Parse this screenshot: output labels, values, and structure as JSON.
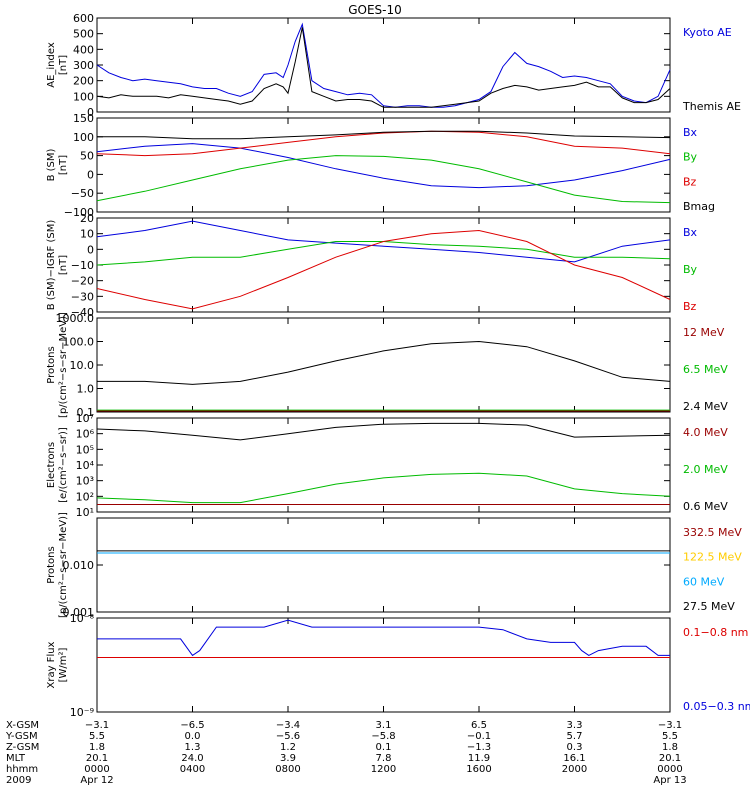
{
  "figure": {
    "title": "GOES-10"
  },
  "chart_data": [
    {
      "type": "line",
      "ylabel_lines": [
        "AE_index",
        "[nT]"
      ],
      "ylim": [
        0,
        600
      ],
      "y_ticks": [
        0,
        100,
        200,
        300,
        400,
        500,
        600
      ],
      "y_tick_labels": [
        "0",
        "100",
        "200",
        "300",
        "400",
        "500",
        "600"
      ],
      "legend": [
        {
          "label": "Kyoto AE",
          "color": "#0000dd"
        },
        {
          "label": "Themis AE",
          "color": "#000000"
        }
      ],
      "series": [
        {
          "name": "Kyoto AE",
          "color": "#0000dd",
          "x": [
            0,
            0.5,
            1,
            1.5,
            2,
            2.5,
            3,
            3.5,
            4,
            4.5,
            5,
            5.5,
            6,
            6.5,
            7,
            7.5,
            7.8,
            8,
            8.3,
            8.6,
            9,
            9.5,
            10,
            10.5,
            11,
            11.5,
            12,
            12.5,
            13,
            13.5,
            14,
            14.5,
            15,
            15.5,
            16,
            16.5,
            17,
            17.5,
            18,
            18.5,
            19,
            19.5,
            20,
            20.5,
            21,
            21.5,
            22,
            22.5,
            23,
            23.5,
            24
          ],
          "y": [
            300,
            250,
            220,
            200,
            210,
            200,
            190,
            180,
            160,
            150,
            150,
            120,
            100,
            130,
            240,
            250,
            220,
            300,
            450,
            560,
            200,
            150,
            130,
            110,
            120,
            110,
            40,
            30,
            40,
            40,
            30,
            30,
            40,
            60,
            80,
            130,
            290,
            380,
            310,
            290,
            260,
            220,
            230,
            220,
            200,
            180,
            100,
            70,
            60,
            100,
            270
          ]
        },
        {
          "name": "Themis AE",
          "color": "#000000",
          "x": [
            0,
            0.5,
            1,
            1.5,
            2,
            2.5,
            3,
            3.5,
            4,
            4.5,
            5,
            5.5,
            6,
            6.5,
            7,
            7.5,
            7.8,
            8,
            8.3,
            8.6,
            9,
            9.5,
            10,
            10.5,
            11,
            11.5,
            12,
            12.5,
            13,
            13.5,
            14,
            14.5,
            15,
            15.5,
            16,
            16.5,
            17,
            17.5,
            18,
            18.5,
            19,
            19.5,
            20,
            20.5,
            21,
            21.5,
            22,
            22.5,
            23,
            23.5,
            24
          ],
          "y": [
            100,
            90,
            110,
            100,
            100,
            100,
            90,
            110,
            100,
            90,
            80,
            70,
            50,
            70,
            150,
            180,
            160,
            120,
            320,
            540,
            130,
            100,
            70,
            80,
            80,
            70,
            30,
            30,
            30,
            30,
            30,
            40,
            50,
            60,
            70,
            120,
            150,
            170,
            160,
            140,
            150,
            160,
            170,
            190,
            160,
            160,
            90,
            60,
            60,
            80,
            150
          ]
        }
      ]
    },
    {
      "type": "line",
      "ylabel_lines": [
        "B (SM)",
        "[nT]"
      ],
      "ylim": [
        -100,
        150
      ],
      "y_ticks": [
        -100,
        -50,
        0,
        50,
        100,
        150
      ],
      "y_tick_labels": [
        "−100",
        "−50",
        "0",
        "50",
        "100",
        "150"
      ],
      "legend": [
        {
          "label": "Bx",
          "color": "#0000dd"
        },
        {
          "label": "By",
          "color": "#00bb00"
        },
        {
          "label": "Bz",
          "color": "#dd0000"
        },
        {
          "label": "Bmag",
          "color": "#000000"
        }
      ],
      "series": [
        {
          "name": "Bx",
          "color": "#0000dd",
          "x": [
            0,
            2,
            4,
            6,
            8,
            10,
            12,
            14,
            16,
            18,
            20,
            22,
            24
          ],
          "y": [
            60,
            75,
            82,
            70,
            45,
            15,
            -10,
            -30,
            -35,
            -30,
            -15,
            10,
            40
          ]
        },
        {
          "name": "By",
          "color": "#00bb00",
          "x": [
            0,
            2,
            4,
            6,
            8,
            10,
            12,
            14,
            16,
            18,
            20,
            22,
            24
          ],
          "y": [
            -70,
            -45,
            -15,
            15,
            38,
            50,
            48,
            38,
            15,
            -20,
            -55,
            -72,
            -75
          ]
        },
        {
          "name": "Bz",
          "color": "#dd0000",
          "x": [
            0,
            2,
            4,
            6,
            8,
            10,
            12,
            14,
            16,
            18,
            20,
            22,
            24
          ],
          "y": [
            55,
            50,
            55,
            70,
            85,
            100,
            110,
            115,
            112,
            100,
            75,
            70,
            55
          ]
        },
        {
          "name": "Bmag",
          "color": "#000000",
          "x": [
            0,
            2,
            4,
            6,
            8,
            10,
            12,
            14,
            16,
            18,
            20,
            22,
            24
          ],
          "y": [
            100,
            100,
            95,
            95,
            100,
            105,
            112,
            115,
            115,
            110,
            102,
            100,
            98
          ]
        }
      ]
    },
    {
      "type": "line",
      "ylabel_lines": [
        "B (SM)−IGRF (SM)",
        "[nT]"
      ],
      "ylim": [
        -40,
        20
      ],
      "y_ticks": [
        -40,
        -30,
        -20,
        -10,
        0,
        10,
        20
      ],
      "y_tick_labels": [
        "−40",
        "−30",
        "−20",
        "−10",
        "0",
        "10",
        "20"
      ],
      "legend": [
        {
          "label": "Bx",
          "color": "#0000dd"
        },
        {
          "label": "By",
          "color": "#00bb00"
        },
        {
          "label": "Bz",
          "color": "#dd0000"
        }
      ],
      "series": [
        {
          "name": "Bx",
          "color": "#0000dd",
          "x": [
            0,
            2,
            4,
            6,
            8,
            10,
            12,
            14,
            16,
            18,
            20,
            22,
            24
          ],
          "y": [
            8,
            12,
            18,
            12,
            6,
            4,
            2,
            0,
            -2,
            -5,
            -8,
            2,
            6
          ]
        },
        {
          "name": "By",
          "color": "#00bb00",
          "x": [
            0,
            2,
            4,
            6,
            8,
            10,
            12,
            14,
            16,
            18,
            20,
            22,
            24
          ],
          "y": [
            -10,
            -8,
            -5,
            -5,
            0,
            5,
            5,
            3,
            2,
            0,
            -5,
            -5,
            -6
          ]
        },
        {
          "name": "Bz",
          "color": "#dd0000",
          "x": [
            0,
            2,
            4,
            6,
            8,
            10,
            12,
            14,
            16,
            18,
            20,
            22,
            24
          ],
          "y": [
            -25,
            -32,
            -38,
            -30,
            -18,
            -5,
            5,
            10,
            12,
            5,
            -10,
            -18,
            -32
          ]
        }
      ]
    },
    {
      "type": "line",
      "log": true,
      "ylabel_lines": [
        "Protons",
        "[p/(cm²−s−sr−MeV)]"
      ],
      "ylim": [
        0.1,
        1000
      ],
      "y_ticks": [
        0.1,
        1,
        10,
        100,
        1000
      ],
      "y_tick_labels": [
        "0.1",
        "1.0",
        "10.0",
        "100.0",
        "1000.0"
      ],
      "legend": [
        {
          "label": "12 MeV",
          "color": "#990000"
        },
        {
          "label": "6.5 MeV",
          "color": "#00bb00"
        },
        {
          "label": "2.4 MeV",
          "color": "#000000"
        }
      ],
      "series": [
        {
          "name": "2.4 MeV",
          "color": "#000000",
          "x": [
            0,
            2,
            4,
            6,
            8,
            10,
            12,
            14,
            16,
            18,
            20,
            22,
            24
          ],
          "y": [
            2,
            2,
            1.5,
            2,
            5,
            15,
            40,
            80,
            100,
            60,
            15,
            3,
            2
          ]
        },
        {
          "name": "6.5 MeV",
          "color": "#00bb00",
          "x": [
            0,
            2,
            4,
            6,
            8,
            10,
            12,
            14,
            16,
            18,
            20,
            22,
            24
          ],
          "y": [
            0.12,
            0.12,
            0.12,
            0.12,
            0.12,
            0.12,
            0.12,
            0.12,
            0.12,
            0.12,
            0.12,
            0.12,
            0.12
          ]
        },
        {
          "name": "12 MeV",
          "color": "#990000",
          "x": [
            0,
            2,
            4,
            6,
            8,
            10,
            12,
            14,
            16,
            18,
            20,
            22,
            24
          ],
          "y": [
            0.11,
            0.11,
            0.11,
            0.11,
            0.11,
            0.11,
            0.11,
            0.11,
            0.11,
            0.11,
            0.11,
            0.11,
            0.11
          ]
        }
      ]
    },
    {
      "type": "line",
      "log": true,
      "ylabel_lines": [
        "Electrons",
        "[e/(cm²−s−sr)]"
      ],
      "ylim": [
        10,
        10000000
      ],
      "y_ticks": [
        10,
        100,
        1000,
        10000,
        100000,
        1000000,
        10000000
      ],
      "y_tick_labels": [
        "10¹",
        "10²",
        "10³",
        "10⁴",
        "10⁵",
        "10⁶",
        "10⁷"
      ],
      "legend": [
        {
          "label": "4.0 MeV",
          "color": "#990000"
        },
        {
          "label": "2.0 MeV",
          "color": "#00bb00"
        },
        {
          "label": "0.6 MeV",
          "color": "#000000"
        }
      ],
      "series": [
        {
          "name": "0.6 MeV",
          "color": "#000000",
          "x": [
            0,
            2,
            4,
            6,
            8,
            10,
            12,
            14,
            16,
            18,
            20,
            22,
            24
          ],
          "y": [
            2000000,
            1500000,
            800000,
            400000,
            1000000,
            2500000,
            4000000,
            4500000,
            4500000,
            3500000,
            600000,
            700000,
            800000
          ]
        },
        {
          "name": "2.0 MeV",
          "color": "#00bb00",
          "x": [
            0,
            2,
            4,
            6,
            8,
            10,
            12,
            14,
            16,
            18,
            20,
            22,
            24
          ],
          "y": [
            80,
            60,
            40,
            40,
            150,
            600,
            1500,
            2500,
            3000,
            2000,
            300,
            150,
            100
          ]
        },
        {
          "name": "4.0 MeV",
          "color": "#990000",
          "x": [
            0,
            2,
            4,
            6,
            8,
            10,
            12,
            14,
            16,
            18,
            20,
            22,
            24
          ],
          "y": [
            30,
            30,
            30,
            30,
            30,
            30,
            30,
            30,
            30,
            30,
            30,
            30,
            30
          ]
        }
      ]
    },
    {
      "type": "line",
      "log": true,
      "ylabel_lines": [
        "Protons",
        "[p/(cm²−s−sr−MeV)]"
      ],
      "ylim": [
        0.001,
        0.1
      ],
      "y_ticks": [
        0.001,
        0.01
      ],
      "y_tick_labels": [
        "0.001",
        "0.010"
      ],
      "legend": [
        {
          "label": "332.5 MeV",
          "color": "#990000"
        },
        {
          "label": "122.5 MeV",
          "color": "#ffcc00"
        },
        {
          "label": "60 MeV",
          "color": "#00aaff"
        },
        {
          "label": "27.5 MeV",
          "color": "#000000"
        }
      ],
      "series": [
        {
          "name": "27.5 MeV",
          "color": "#000000",
          "x": [
            0,
            2,
            4,
            6,
            8,
            10,
            12,
            14,
            16,
            18,
            20,
            22,
            24
          ],
          "y": [
            0.02,
            0.02,
            0.02,
            0.02,
            0.02,
            0.02,
            0.02,
            0.02,
            0.02,
            0.02,
            0.02,
            0.02,
            0.02
          ]
        },
        {
          "name": "60 MeV",
          "color": "#00aaff",
          "x": [
            0,
            2,
            4,
            6,
            8,
            10,
            12,
            14,
            16,
            18,
            20,
            22,
            24
          ],
          "y": [
            0.018,
            0.018,
            0.018,
            0.018,
            0.018,
            0.018,
            0.018,
            0.018,
            0.018,
            0.018,
            0.018,
            0.018,
            0.018
          ]
        }
      ]
    },
    {
      "type": "line",
      "log": true,
      "ylabel_lines": [
        "Xray Flux",
        "[W/m²]"
      ],
      "ylim": [
        1e-09,
        1e-08
      ],
      "y_ticks": [
        1e-09,
        1e-08
      ],
      "y_tick_labels": [
        "10⁻⁹",
        "10⁻⁸"
      ],
      "legend": [
        {
          "label": "0.1−0.8 nm",
          "color": "#dd0000"
        },
        {
          "label": "0.05−0.3 nm",
          "color": "#0000dd"
        }
      ],
      "series": [
        {
          "name": "0.05−0.3 nm",
          "color": "#0000dd",
          "x": [
            0,
            1,
            2,
            3,
            3.5,
            4,
            4.3,
            5,
            6,
            7,
            8,
            9,
            10,
            11,
            12,
            13,
            14,
            15,
            16,
            17,
            18,
            19,
            20,
            20.3,
            20.6,
            21,
            22,
            23,
            23.5,
            24
          ],
          "y": [
            6e-09,
            6e-09,
            6e-09,
            6e-09,
            6e-09,
            4e-09,
            4.5e-09,
            8e-09,
            8e-09,
            8e-09,
            9.5e-09,
            8e-09,
            8e-09,
            8e-09,
            8e-09,
            8e-09,
            8e-09,
            8e-09,
            8e-09,
            7.5e-09,
            6e-09,
            5.5e-09,
            5.5e-09,
            4.5e-09,
            4e-09,
            4.5e-09,
            5e-09,
            5e-09,
            4e-09,
            4e-09
          ]
        },
        {
          "name": "0.1−0.8 nm",
          "color": "#dd0000",
          "x": [
            0,
            24
          ],
          "y": [
            3.8e-09,
            3.8e-09
          ]
        }
      ]
    }
  ],
  "bottom_axis": {
    "row_labels": [
      "X-GSM",
      "Y-GSM",
      "Z-GSM",
      "MLT",
      "hhmm",
      "2009"
    ],
    "columns": [
      [
        "−3.1",
        "5.5",
        "1.8",
        "20.1",
        "0000",
        "Apr 12"
      ],
      [
        "−6.5",
        "0.0",
        "1.3",
        "24.0",
        "0400",
        ""
      ],
      [
        "−3.4",
        "−5.6",
        "1.2",
        "3.9",
        "0800",
        ""
      ],
      [
        "3.1",
        "−5.8",
        "0.1",
        "7.8",
        "1200",
        ""
      ],
      [
        "6.5",
        "−0.1",
        "−1.3",
        "11.9",
        "1600",
        ""
      ],
      [
        "3.3",
        "5.7",
        "0.3",
        "16.1",
        "2000",
        ""
      ],
      [
        "−3.1",
        "5.5",
        "1.8",
        "20.1",
        "0000",
        "Apr 13"
      ]
    ]
  }
}
